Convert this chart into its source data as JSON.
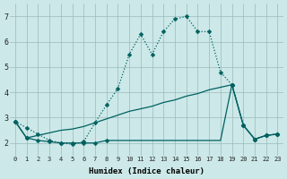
{
  "xlabel": "Humidex (Indice chaleur)",
  "xlim": [
    -0.5,
    23.5
  ],
  "ylim": [
    1.5,
    7.5
  ],
  "yticks": [
    2,
    3,
    4,
    5,
    6,
    7
  ],
  "xticks": [
    0,
    1,
    2,
    3,
    4,
    5,
    6,
    7,
    8,
    9,
    10,
    11,
    12,
    13,
    14,
    15,
    16,
    17,
    18,
    19,
    20,
    21,
    22,
    23
  ],
  "bg_color": "#cce8e8",
  "grid_color": "#99bbbb",
  "line_color": "#006060",
  "line1_x": [
    0,
    1,
    2,
    3,
    4,
    5,
    6,
    7,
    8,
    9,
    10,
    11,
    12,
    13,
    14,
    15,
    16,
    17,
    18,
    19,
    20,
    21,
    22,
    23
  ],
  "line1_y": [
    2.85,
    2.6,
    2.35,
    2.1,
    2.0,
    1.95,
    2.05,
    2.8,
    3.5,
    4.15,
    5.5,
    6.3,
    5.5,
    6.4,
    6.9,
    7.0,
    6.4,
    6.4,
    4.8,
    4.3,
    2.7,
    2.15,
    2.3,
    2.35
  ],
  "line2_x": [
    0,
    1,
    2,
    3,
    4,
    5,
    6,
    7,
    8,
    9,
    10,
    11,
    12,
    13,
    14,
    15,
    16,
    17,
    18,
    19,
    20,
    21,
    22,
    23
  ],
  "line2_y": [
    2.85,
    2.2,
    2.1,
    2.05,
    2.0,
    2.0,
    2.0,
    2.0,
    2.1,
    2.1,
    2.1,
    2.1,
    2.1,
    2.1,
    2.1,
    2.1,
    2.1,
    2.1,
    2.1,
    4.3,
    2.7,
    2.15,
    2.3,
    2.35
  ],
  "line3_x": [
    0,
    1,
    2,
    3,
    4,
    5,
    6,
    7,
    8,
    9,
    10,
    11,
    12,
    13,
    14,
    15,
    16,
    17,
    18,
    19,
    20,
    21,
    22,
    23
  ],
  "line3_y": [
    2.85,
    2.2,
    2.3,
    2.4,
    2.5,
    2.55,
    2.65,
    2.8,
    2.95,
    3.1,
    3.25,
    3.35,
    3.45,
    3.6,
    3.7,
    3.85,
    3.95,
    4.1,
    4.2,
    4.3,
    2.7,
    2.15,
    2.3,
    2.35
  ],
  "line1_marker_x": [
    0,
    1,
    2,
    3,
    4,
    5,
    6,
    7,
    8,
    9,
    10,
    11,
    12,
    13,
    14,
    15,
    16,
    17,
    18,
    19,
    20,
    21,
    22,
    23
  ],
  "line1_marker_y": [
    2.85,
    2.6,
    2.35,
    2.1,
    2.0,
    1.95,
    2.05,
    2.8,
    3.5,
    4.15,
    5.5,
    6.3,
    5.5,
    6.4,
    6.9,
    7.0,
    6.4,
    6.4,
    4.8,
    4.3,
    2.7,
    2.15,
    2.3,
    2.35
  ],
  "line2_marker_x": [
    0,
    1,
    2,
    3,
    4,
    5,
    6,
    7,
    8,
    19,
    20,
    21,
    22,
    23
  ],
  "line2_marker_y": [
    2.85,
    2.2,
    2.1,
    2.05,
    2.0,
    2.0,
    2.0,
    2.0,
    2.1,
    4.3,
    2.7,
    2.15,
    2.3,
    2.35
  ],
  "line3_marker_x": [
    0,
    1,
    19,
    20,
    21,
    22,
    23
  ],
  "line3_marker_y": [
    2.85,
    2.2,
    4.3,
    2.7,
    2.15,
    2.3,
    2.35
  ]
}
